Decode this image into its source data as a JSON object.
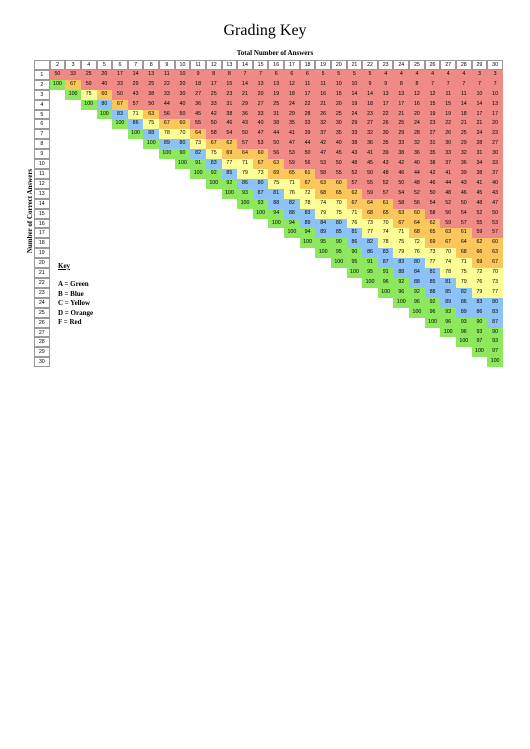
{
  "title": "Grading Key",
  "subtitle": "Total Number of Answers",
  "ylabel": "Number of Correct Answers",
  "key": {
    "title": "Key",
    "lines": [
      "A = Green",
      "B = Blue",
      "C = Yellow",
      "D = Orange",
      "F = Red"
    ]
  },
  "grade_colors": {
    "A": "#8ee85e",
    "B": "#8cc2f5",
    "C": "#fefe96",
    "D": "#fbc65c",
    "F": "#f08a86"
  },
  "grading_scale": "A >= 90, B >= 80, C >= 70, D >= 60, F < 60 (percent rounded down)",
  "column_headers": [
    "2",
    "3",
    "4",
    "5",
    "6",
    "7",
    "8",
    "9",
    "10",
    "11",
    "12",
    "13",
    "14",
    "15",
    "16",
    "17",
    "18",
    "19",
    "20",
    "21",
    "22",
    "23",
    "24",
    "25",
    "26",
    "27",
    "28",
    "29",
    "30"
  ],
  "row_headers": [
    "1",
    "2",
    "3",
    "4",
    "5",
    "6",
    "7",
    "8",
    "9",
    "10",
    "11",
    "12",
    "13",
    "14",
    "15",
    "16",
    "17",
    "18",
    "19",
    "20",
    "21",
    "22",
    "23",
    "24",
    "25",
    "26",
    "27",
    "28",
    "29",
    "30"
  ],
  "table": [
    [
      "50",
      "33",
      "25",
      "20",
      "17",
      "14",
      "13",
      "11",
      "10",
      "9",
      "8",
      "8",
      "7",
      "7",
      "6",
      "6",
      "6",
      "5",
      "5",
      "5",
      "5",
      "4",
      "4",
      "4",
      "4",
      "4",
      "4",
      "3",
      "3"
    ],
    [
      "100",
      "67",
      "50",
      "40",
      "33",
      "29",
      "25",
      "22",
      "20",
      "18",
      "17",
      "15",
      "14",
      "13",
      "13",
      "12",
      "11",
      "11",
      "10",
      "10",
      "9",
      "9",
      "8",
      "8",
      "7",
      "7",
      "7",
      "7",
      "7"
    ],
    [
      "",
      "100",
      "75",
      "60",
      "50",
      "43",
      "38",
      "33",
      "30",
      "27",
      "25",
      "23",
      "21",
      "20",
      "19",
      "18",
      "17",
      "16",
      "15",
      "14",
      "14",
      "13",
      "13",
      "12",
      "12",
      "11",
      "11",
      "10",
      "10"
    ],
    [
      "",
      "",
      "100",
      "80",
      "67",
      "57",
      "50",
      "44",
      "40",
      "36",
      "33",
      "31",
      "29",
      "27",
      "25",
      "24",
      "22",
      "21",
      "20",
      "19",
      "18",
      "17",
      "17",
      "16",
      "15",
      "15",
      "14",
      "14",
      "13"
    ],
    [
      "",
      "",
      "",
      "100",
      "83",
      "71",
      "63",
      "56",
      "50",
      "45",
      "42",
      "38",
      "36",
      "33",
      "31",
      "29",
      "28",
      "26",
      "25",
      "24",
      "23",
      "22",
      "21",
      "20",
      "19",
      "19",
      "18",
      "17",
      "17"
    ],
    [
      "",
      "",
      "",
      "",
      "100",
      "86",
      "75",
      "67",
      "60",
      "55",
      "50",
      "46",
      "43",
      "40",
      "38",
      "35",
      "33",
      "32",
      "30",
      "29",
      "27",
      "26",
      "25",
      "24",
      "23",
      "22",
      "21",
      "21",
      "20"
    ],
    [
      "",
      "",
      "",
      "",
      "",
      "100",
      "88",
      "78",
      "70",
      "64",
      "58",
      "54",
      "50",
      "47",
      "44",
      "41",
      "39",
      "37",
      "35",
      "33",
      "32",
      "30",
      "29",
      "28",
      "27",
      "26",
      "25",
      "24",
      "23"
    ],
    [
      "",
      "",
      "",
      "",
      "",
      "",
      "100",
      "89",
      "80",
      "73",
      "67",
      "62",
      "57",
      "53",
      "50",
      "47",
      "44",
      "42",
      "40",
      "38",
      "36",
      "35",
      "33",
      "32",
      "31",
      "30",
      "29",
      "28",
      "27"
    ],
    [
      "",
      "",
      "",
      "",
      "",
      "",
      "",
      "100",
      "90",
      "82",
      "75",
      "69",
      "64",
      "60",
      "56",
      "53",
      "50",
      "47",
      "45",
      "43",
      "41",
      "39",
      "38",
      "36",
      "35",
      "33",
      "32",
      "31",
      "30"
    ],
    [
      "",
      "",
      "",
      "",
      "",
      "",
      "",
      "",
      "100",
      "91",
      "83",
      "77",
      "71",
      "67",
      "63",
      "59",
      "56",
      "53",
      "50",
      "48",
      "45",
      "43",
      "42",
      "40",
      "38",
      "37",
      "36",
      "34",
      "33"
    ],
    [
      "",
      "",
      "",
      "",
      "",
      "",
      "",
      "",
      "",
      "100",
      "92",
      "85",
      "79",
      "73",
      "69",
      "65",
      "61",
      "58",
      "55",
      "52",
      "50",
      "48",
      "46",
      "44",
      "42",
      "41",
      "39",
      "38",
      "37"
    ],
    [
      "",
      "",
      "",
      "",
      "",
      "",
      "",
      "",
      "",
      "",
      "100",
      "92",
      "86",
      "80",
      "75",
      "71",
      "67",
      "63",
      "60",
      "57",
      "55",
      "52",
      "50",
      "48",
      "46",
      "44",
      "43",
      "41",
      "40"
    ],
    [
      "",
      "",
      "",
      "",
      "",
      "",
      "",
      "",
      "",
      "",
      "",
      "100",
      "93",
      "87",
      "81",
      "76",
      "72",
      "68",
      "65",
      "62",
      "59",
      "57",
      "54",
      "52",
      "50",
      "48",
      "46",
      "45",
      "43"
    ],
    [
      "",
      "",
      "",
      "",
      "",
      "",
      "",
      "",
      "",
      "",
      "",
      "",
      "100",
      "93",
      "88",
      "82",
      "78",
      "74",
      "70",
      "67",
      "64",
      "61",
      "58",
      "56",
      "54",
      "52",
      "50",
      "48",
      "47"
    ],
    [
      "",
      "",
      "",
      "",
      "",
      "",
      "",
      "",
      "",
      "",
      "",
      "",
      "",
      "100",
      "94",
      "88",
      "83",
      "79",
      "75",
      "71",
      "68",
      "65",
      "63",
      "60",
      "58",
      "56",
      "54",
      "52",
      "50"
    ],
    [
      "",
      "",
      "",
      "",
      "",
      "",
      "",
      "",
      "",
      "",
      "",
      "",
      "",
      "",
      "100",
      "94",
      "89",
      "84",
      "80",
      "76",
      "73",
      "70",
      "67",
      "64",
      "62",
      "59",
      "57",
      "55",
      "53"
    ],
    [
      "",
      "",
      "",
      "",
      "",
      "",
      "",
      "",
      "",
      "",
      "",
      "",
      "",
      "",
      "",
      "100",
      "94",
      "89",
      "85",
      "81",
      "77",
      "74",
      "71",
      "68",
      "65",
      "63",
      "61",
      "59",
      "57"
    ],
    [
      "",
      "",
      "",
      "",
      "",
      "",
      "",
      "",
      "",
      "",
      "",
      "",
      "",
      "",
      "",
      "",
      "100",
      "95",
      "90",
      "86",
      "82",
      "78",
      "75",
      "72",
      "69",
      "67",
      "64",
      "62",
      "60"
    ],
    [
      "",
      "",
      "",
      "",
      "",
      "",
      "",
      "",
      "",
      "",
      "",
      "",
      "",
      "",
      "",
      "",
      "",
      "100",
      "95",
      "90",
      "86",
      "83",
      "79",
      "76",
      "73",
      "70",
      "68",
      "66",
      "63"
    ],
    [
      "",
      "",
      "",
      "",
      "",
      "",
      "",
      "",
      "",
      "",
      "",
      "",
      "",
      "",
      "",
      "",
      "",
      "",
      "100",
      "95",
      "91",
      "87",
      "83",
      "80",
      "77",
      "74",
      "71",
      "69",
      "67"
    ],
    [
      "",
      "",
      "",
      "",
      "",
      "",
      "",
      "",
      "",
      "",
      "",
      "",
      "",
      "",
      "",
      "",
      "",
      "",
      "",
      "100",
      "95",
      "91",
      "88",
      "84",
      "81",
      "78",
      "75",
      "72",
      "70"
    ],
    [
      "",
      "",
      "",
      "",
      "",
      "",
      "",
      "",
      "",
      "",
      "",
      "",
      "",
      "",
      "",
      "",
      "",
      "",
      "",
      "",
      "100",
      "96",
      "92",
      "88",
      "85",
      "81",
      "79",
      "76",
      "73"
    ],
    [
      "",
      "",
      "",
      "",
      "",
      "",
      "",
      "",
      "",
      "",
      "",
      "",
      "",
      "",
      "",
      "",
      "",
      "",
      "",
      "",
      "",
      "100",
      "96",
      "92",
      "88",
      "85",
      "82",
      "79",
      "77"
    ],
    [
      "",
      "",
      "",
      "",
      "",
      "",
      "",
      "",
      "",
      "",
      "",
      "",
      "",
      "",
      "",
      "",
      "",
      "",
      "",
      "",
      "",
      "",
      "100",
      "96",
      "92",
      "89",
      "86",
      "83",
      "80"
    ],
    [
      "",
      "",
      "",
      "",
      "",
      "",
      "",
      "",
      "",
      "",
      "",
      "",
      "",
      "",
      "",
      "",
      "",
      "",
      "",
      "",
      "",
      "",
      "",
      "100",
      "96",
      "93",
      "89",
      "86",
      "83"
    ],
    [
      "",
      "",
      "",
      "",
      "",
      "",
      "",
      "",
      "",
      "",
      "",
      "",
      "",
      "",
      "",
      "",
      "",
      "",
      "",
      "",
      "",
      "",
      "",
      "",
      "100",
      "96",
      "93",
      "90",
      "87"
    ],
    [
      "",
      "",
      "",
      "",
      "",
      "",
      "",
      "",
      "",
      "",
      "",
      "",
      "",
      "",
      "",
      "",
      "",
      "",
      "",
      "",
      "",
      "",
      "",
      "",
      "",
      "100",
      "96",
      "93",
      "90"
    ],
    [
      "",
      "",
      "",
      "",
      "",
      "",
      "",
      "",
      "",
      "",
      "",
      "",
      "",
      "",
      "",
      "",
      "",
      "",
      "",
      "",
      "",
      "",
      "",
      "",
      "",
      "",
      "100",
      "97",
      "93"
    ],
    [
      "",
      "",
      "",
      "",
      "",
      "",
      "",
      "",
      "",
      "",
      "",
      "",
      "",
      "",
      "",
      "",
      "",
      "",
      "",
      "",
      "",
      "",
      "",
      "",
      "",
      "",
      "",
      "100",
      "97"
    ],
    [
      "",
      "",
      "",
      "",
      "",
      "",
      "",
      "",
      "",
      "",
      "",
      "",
      "",
      "",
      "",
      "",
      "",
      "",
      "",
      "",
      "",
      "",
      "",
      "",
      "",
      "",
      "",
      "",
      "100"
    ]
  ]
}
